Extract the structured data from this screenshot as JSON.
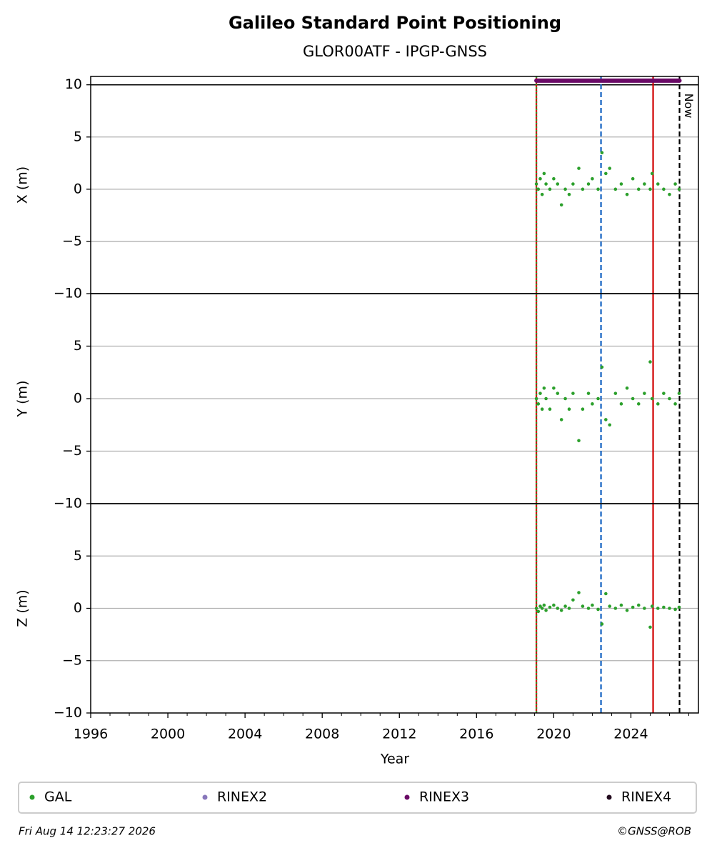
{
  "title": "Galileo Standard Point Positioning",
  "subtitle": "GLOR00ATF - IPGP-GNSS",
  "xlabel": "Year",
  "footer_left": "Fri Aug 14 12:23:27 2026",
  "footer_right": "©GNSS@ROB",
  "legend": {
    "position": "bottom",
    "entries": [
      {
        "name": "GAL",
        "color": "#2ca02c"
      },
      {
        "name": "RINEX2",
        "color": "#8877bb"
      },
      {
        "name": "RINEX3",
        "color": "#6a0a66"
      },
      {
        "name": "RINEX4",
        "color": "#220a1e"
      }
    ]
  },
  "vlines": [
    {
      "x": 2019.1,
      "color": "#d00000",
      "style": "solid"
    },
    {
      "x": 2019.1,
      "color": "#2ca02c",
      "style": "dotted"
    },
    {
      "x": 2022.45,
      "color": "#1060c0",
      "style": "dashed"
    },
    {
      "x": 2025.15,
      "color": "#d00000",
      "style": "solid"
    },
    {
      "x": 2026.52,
      "color": "#000000",
      "style": "dashed",
      "label": "Now"
    }
  ],
  "chart_data": [
    {
      "type": "scatter",
      "ylabel": "X (m)",
      "xlim": [
        1996,
        2027.5
      ],
      "ylim": [
        -10,
        10.8
      ],
      "yticks": [
        {
          "value": -10,
          "label": "−10"
        },
        {
          "value": -5,
          "label": "−5"
        },
        0,
        5,
        10
      ],
      "grid": true,
      "hlines": [
        10
      ],
      "x": [
        2019.1,
        2019.2,
        2019.3,
        2019.4,
        2019.5,
        2019.6,
        2019.8,
        2020.0,
        2020.2,
        2020.4,
        2020.6,
        2020.8,
        2021.0,
        2021.3,
        2021.5,
        2021.8,
        2022.0,
        2022.3,
        2022.5,
        2022.7,
        2022.9,
        2023.2,
        2023.5,
        2023.8,
        2024.1,
        2024.4,
        2024.7,
        2025.0,
        2025.1,
        2025.4,
        2025.7,
        2026.0,
        2026.3,
        2026.5
      ],
      "series": [
        {
          "name": "GAL",
          "color": "#2ca02c",
          "values": [
            0.5,
            0,
            1,
            -0.5,
            1.5,
            0.5,
            0,
            1,
            0.5,
            -1.5,
            0,
            -0.5,
            0.5,
            2,
            0,
            0.5,
            1,
            0,
            3.5,
            1.5,
            2,
            0,
            0.5,
            -0.5,
            1,
            0,
            0.5,
            0,
            1.5,
            0.5,
            0,
            -0.5,
            0.5,
            0
          ]
        },
        {
          "name": "RINEX3",
          "color": "#6a0a66",
          "x": [
            2019.1,
            2026.52
          ],
          "values": [
            10.4,
            10.4
          ]
        }
      ]
    },
    {
      "type": "scatter",
      "ylabel": "Y (m)",
      "xlim": [
        1996,
        2027.5
      ],
      "ylim": [
        -10,
        10
      ],
      "yticks": [
        {
          "value": -10,
          "label": "−10"
        },
        {
          "value": -5,
          "label": "−5"
        },
        0,
        5
      ],
      "grid": true,
      "x": [
        2019.1,
        2019.2,
        2019.3,
        2019.4,
        2019.5,
        2019.6,
        2019.8,
        2020.0,
        2020.2,
        2020.4,
        2020.6,
        2020.8,
        2021.0,
        2021.3,
        2021.5,
        2021.8,
        2022.0,
        2022.3,
        2022.5,
        2022.7,
        2022.9,
        2023.2,
        2023.5,
        2023.8,
        2024.1,
        2024.4,
        2024.7,
        2025.0,
        2025.1,
        2025.4,
        2025.7,
        2026.0,
        2026.3,
        2026.5
      ],
      "series": [
        {
          "name": "GAL",
          "color": "#2ca02c",
          "values": [
            0,
            -0.5,
            0.5,
            -1,
            1,
            0,
            -1,
            1,
            0.5,
            -2,
            0,
            -1,
            0.5,
            -4,
            -1,
            0.5,
            -0.5,
            0,
            3,
            -2,
            -2.5,
            0.5,
            -0.5,
            1,
            0,
            -0.5,
            0.5,
            3.5,
            0,
            -0.5,
            0.5,
            0,
            -0.5,
            0.5
          ]
        }
      ]
    },
    {
      "type": "scatter",
      "ylabel": "Z (m)",
      "xlim": [
        1996,
        2027.5
      ],
      "ylim": [
        -10,
        10
      ],
      "yticks": [
        {
          "value": -10,
          "label": "−10"
        },
        {
          "value": -5,
          "label": "−5"
        },
        0,
        5
      ],
      "grid": true,
      "xticks": [
        1996,
        2000,
        2004,
        2008,
        2012,
        2016,
        2020,
        2024
      ],
      "xminorticks": [
        1997,
        1998,
        1999,
        2001,
        2002,
        2003,
        2005,
        2006,
        2007,
        2009,
        2010,
        2011,
        2013,
        2014,
        2015,
        2017,
        2018,
        2019,
        2021,
        2022,
        2023,
        2025,
        2026,
        2027
      ],
      "x": [
        2019.1,
        2019.2,
        2019.3,
        2019.4,
        2019.5,
        2019.6,
        2019.8,
        2020.0,
        2020.2,
        2020.4,
        2020.6,
        2020.8,
        2021.0,
        2021.3,
        2021.5,
        2021.8,
        2022.0,
        2022.3,
        2022.5,
        2022.7,
        2022.9,
        2023.2,
        2023.5,
        2023.8,
        2024.1,
        2024.4,
        2024.7,
        2025.0,
        2025.1,
        2025.4,
        2025.7,
        2026.0,
        2026.3,
        2026.5
      ],
      "series": [
        {
          "name": "GAL",
          "color": "#2ca02c",
          "values": [
            0,
            -0.3,
            0.2,
            0,
            0.3,
            -0.2,
            0.1,
            0.3,
            0,
            -0.2,
            0.2,
            0,
            0.8,
            1.5,
            0.2,
            0,
            0.3,
            -0.1,
            -1.5,
            1.4,
            0.2,
            0,
            0.3,
            -0.2,
            0.1,
            0.3,
            0,
            -1.8,
            0.2,
            0,
            0.1,
            0,
            -0.1,
            0.1
          ]
        }
      ]
    }
  ]
}
